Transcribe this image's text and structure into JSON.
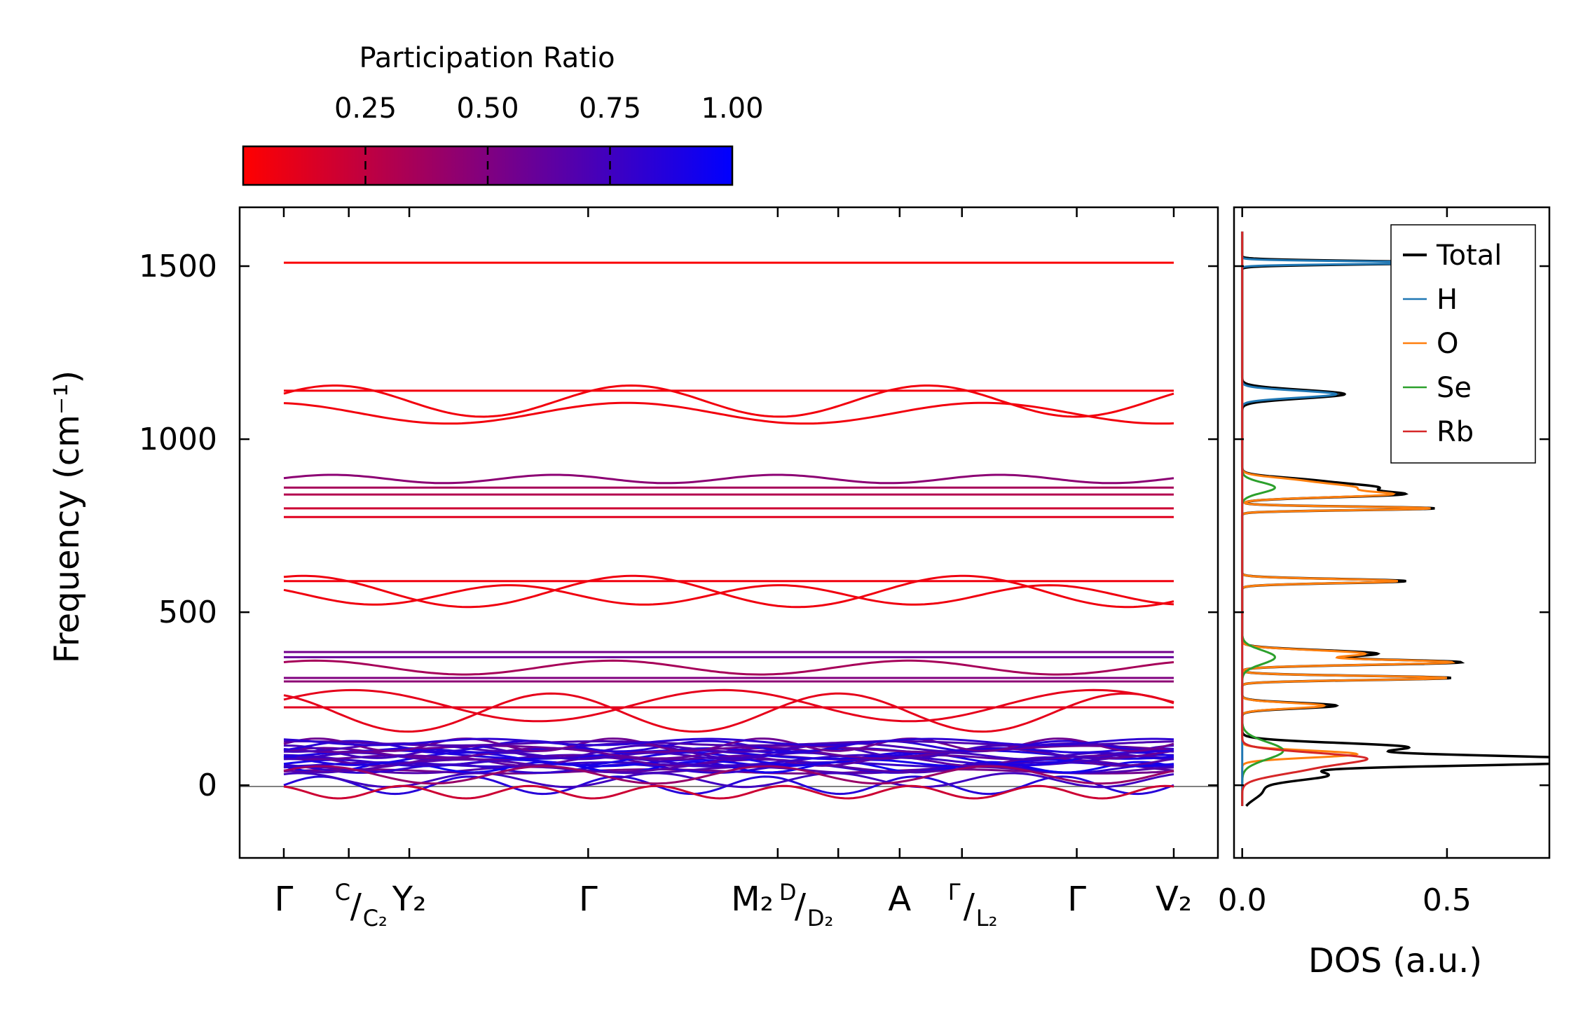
{
  "chart_data": [
    {
      "type": "line",
      "name": "phonon band structure",
      "ylabel": "Frequency (cm⁻¹)",
      "ylim": [
        -210,
        1670
      ],
      "yticks": [
        0,
        500,
        1000,
        1500
      ],
      "colorbar": {
        "title": "Participation Ratio",
        "ticks": [
          "0.25",
          "0.50",
          "0.75",
          "1.00"
        ],
        "range": [
          0,
          1
        ],
        "low_color": "#ff0000",
        "high_color": "#0000ff"
      },
      "kpoints": [
        {
          "pos": 0.0,
          "main": "Γ",
          "sup": "",
          "sub": ""
        },
        {
          "pos": 0.073,
          "main": "",
          "sup": "C",
          "sub": "C₂",
          "combo": true
        },
        {
          "pos": 0.141,
          "main": "Y₂",
          "sup": "",
          "sub": ""
        },
        {
          "pos": 0.342,
          "main": "Γ",
          "sup": "",
          "sub": ""
        },
        {
          "pos": 0.555,
          "main": "M₂",
          "sup": "D",
          "sub": "D₂",
          "combo": true
        },
        {
          "pos": 0.623,
          "main": "",
          "sup": "",
          "sub": ""
        },
        {
          "pos": 0.692,
          "main": "A",
          "sup": "",
          "sub": ""
        },
        {
          "pos": 0.762,
          "main": "",
          "sup": "Γ",
          "sub": "L₂",
          "combo": true
        },
        {
          "pos": 0.891,
          "main": "Γ",
          "sup": "",
          "sub": ""
        },
        {
          "pos": 1.0,
          "main": "V₂",
          "sup": "",
          "sub": ""
        }
      ],
      "flat_bands": [
        {
          "freq": 1510,
          "pr": 0.02
        },
        {
          "freq": 1140,
          "pr": 0.05
        },
        {
          "freq": 860,
          "pr": 0.35
        },
        {
          "freq": 840,
          "pr": 0.3
        },
        {
          "freq": 800,
          "pr": 0.2
        },
        {
          "freq": 775,
          "pr": 0.12
        },
        {
          "freq": 590,
          "pr": 0.06
        },
        {
          "freq": 385,
          "pr": 0.55
        },
        {
          "freq": 370,
          "pr": 0.6
        },
        {
          "freq": 310,
          "pr": 0.5
        },
        {
          "freq": 300,
          "pr": 0.45
        },
        {
          "freq": 225,
          "pr": 0.12
        }
      ],
      "wavy_bands": [
        {
          "base": 1110,
          "amp": 45,
          "freq": 3.0,
          "phase": 0.5,
          "pr": 0.05
        },
        {
          "base": 1075,
          "amp": 30,
          "freq": 2.5,
          "phase": 1.8,
          "pr": 0.05
        },
        {
          "base": 885,
          "amp": 12,
          "freq": 4.0,
          "phase": 0.2,
          "pr": 0.45
        },
        {
          "base": 560,
          "amp": 45,
          "freq": 2.7,
          "phase": 1.2,
          "pr": 0.06
        },
        {
          "base": 550,
          "amp": 28,
          "freq": 3.3,
          "phase": 2.6,
          "pr": 0.06
        },
        {
          "base": 340,
          "amp": 20,
          "freq": 3.0,
          "phase": 0.9,
          "pr": 0.35
        },
        {
          "base": 230,
          "amp": 45,
          "freq": 2.4,
          "phase": 0.4,
          "pr": 0.1
        },
        {
          "base": 210,
          "amp": 55,
          "freq": 3.1,
          "phase": 2.0,
          "pr": 0.1
        }
      ],
      "acoustic_bands": [
        {
          "base": 0,
          "amp": 25,
          "freq": 6.0,
          "phase": 0.0,
          "pr": 0.85
        },
        {
          "base": 15,
          "amp": 20,
          "freq": 5.0,
          "phase": 1.0,
          "pr": 0.75
        },
        {
          "base": -20,
          "amp": 18,
          "freq": 7.0,
          "phase": 2.0,
          "pr": 0.2
        },
        {
          "base": 30,
          "amp": 25,
          "freq": 4.0,
          "phase": 0.5,
          "pr": 0.4
        }
      ],
      "dense_band_region": {
        "min": 40,
        "max": 125,
        "count": 22,
        "pr_low": 0.55,
        "pr_high": 0.95
      }
    },
    {
      "type": "line",
      "name": "density of states",
      "xlabel": "DOS (a.u.)",
      "xlim": [
        -0.02,
        0.75
      ],
      "xticks": [
        "0.0",
        "0.5"
      ],
      "ylim": [
        -210,
        1670
      ],
      "legend_position": "top-right",
      "series": [
        {
          "name": "Total",
          "color": "#000000",
          "peaks": [
            [
              1510,
              0.5,
              5
            ],
            [
              1130,
              0.25,
              12
            ],
            [
              880,
              0.15,
              10
            ],
            [
              860,
              0.3,
              10
            ],
            [
              840,
              0.35,
              8
            ],
            [
              800,
              0.47,
              5
            ],
            [
              590,
              0.4,
              6
            ],
            [
              380,
              0.33,
              10
            ],
            [
              355,
              0.52,
              7
            ],
            [
              310,
              0.51,
              6
            ],
            [
              230,
              0.23,
              8
            ],
            [
              110,
              0.4,
              12
            ],
            [
              80,
              0.56,
              10
            ],
            [
              65,
              0.65,
              10
            ],
            [
              30,
              0.2,
              15
            ],
            [
              -15,
              0.05,
              25
            ]
          ]
        },
        {
          "name": "H",
          "color": "#1f77b4",
          "peaks": [
            [
              1510,
              0.5,
              4
            ],
            [
              1130,
              0.23,
              10
            ]
          ]
        },
        {
          "name": "O",
          "color": "#ff7f0e",
          "peaks": [
            [
              880,
              0.12,
              10
            ],
            [
              860,
              0.25,
              10
            ],
            [
              840,
              0.33,
              8
            ],
            [
              800,
              0.46,
              5
            ],
            [
              590,
              0.38,
              6
            ],
            [
              380,
              0.3,
              10
            ],
            [
              355,
              0.5,
              7
            ],
            [
              310,
              0.5,
              6
            ],
            [
              230,
              0.2,
              8
            ],
            [
              90,
              0.28,
              10
            ]
          ]
        },
        {
          "name": "Se",
          "color": "#2ca02c",
          "peaks": [
            [
              860,
              0.08,
              15
            ],
            [
              370,
              0.08,
              20
            ],
            [
              100,
              0.1,
              25
            ]
          ]
        },
        {
          "name": "Rb",
          "color": "#d62728",
          "peaks": [
            [
              80,
              0.25,
              15
            ],
            [
              50,
              0.15,
              20
            ]
          ]
        }
      ]
    }
  ]
}
